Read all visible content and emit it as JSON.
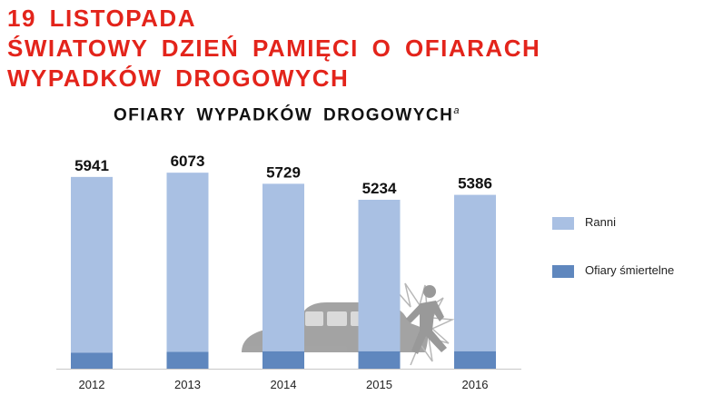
{
  "header": {
    "line1": "19 LISTOPADA",
    "line2": "ŚWIATOWY DZIEŃ PAMIĘCI O OFIARACH",
    "line3": "WYPADKÓW DROGOWYCH"
  },
  "chart_data": {
    "type": "bar",
    "stacked": true,
    "title": "OFIARY WYPADKÓW DROGOWYCH",
    "title_note": "a",
    "categories": [
      "2012",
      "2013",
      "2014",
      "2015",
      "2016"
    ],
    "totals": [
      5941,
      6073,
      5729,
      5234,
      5386
    ],
    "series": [
      {
        "name": "Ranni",
        "color": "#a9c0e3",
        "values": [
          5446,
          5553,
          5193,
          4698,
          4846
        ]
      },
      {
        "name": "Ofiary śmiertelne",
        "color": "#5f87be",
        "values": [
          495,
          520,
          536,
          536,
          540
        ]
      }
    ],
    "ylim": [
      0,
      6300
    ],
    "grid": false,
    "legend_position": "right",
    "xlabel": "",
    "ylabel": ""
  }
}
